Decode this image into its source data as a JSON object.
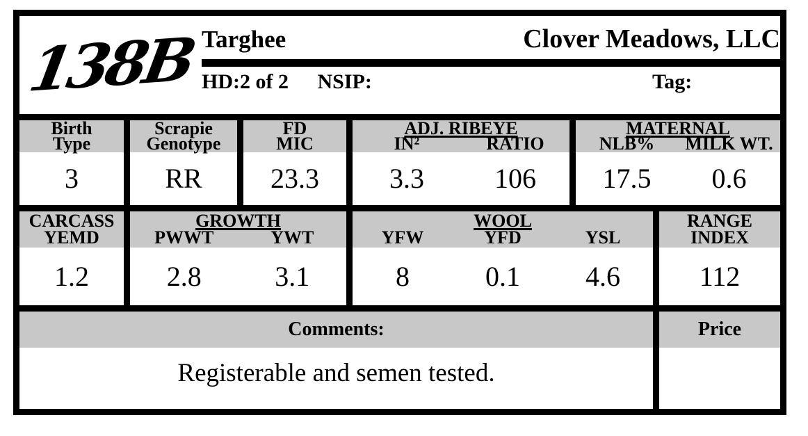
{
  "colors": {
    "header_band": "#c8c8c8",
    "border": "#000000",
    "text": "#000000",
    "background": "#ffffff"
  },
  "header": {
    "animal_id_script": "138B",
    "breed": "Targhee",
    "ranch_name": "Clover Meadows, LLC",
    "hd_text": "HD:2 of 2",
    "nsip_label": "NSIP:",
    "nsip_value": "",
    "tag_label": "Tag:",
    "tag_value": ""
  },
  "stats_row_1": {
    "birth_type": {
      "label_line1": "Birth",
      "label_line2": "Type",
      "value": "3"
    },
    "scrapie_genotype": {
      "label_line1": "Scrapie",
      "label_line2": "Genotype",
      "value": "RR"
    },
    "fd_mic": {
      "label_line1": "FD",
      "label_line2": "MIC",
      "value": "23.3"
    },
    "adj_ribeye": {
      "group_title": "ADJ. RIBEYE",
      "columns": [
        "IN²",
        "RATIO"
      ],
      "values": [
        "3.3",
        "106"
      ]
    },
    "maternal": {
      "group_title": "MATERNAL",
      "columns": [
        "NLB%",
        "MILK WT."
      ],
      "values": [
        "17.5",
        "0.6"
      ]
    }
  },
  "stats_row_2": {
    "carcass_yemd": {
      "label_line1": "CARCASS",
      "label_line2": "YEMD",
      "value": "1.2"
    },
    "growth": {
      "group_title": "GROWTH",
      "columns": [
        "PWWT",
        "YWT"
      ],
      "values": [
        "2.8",
        "3.1"
      ]
    },
    "wool": {
      "group_title": "WOOL",
      "columns": [
        "YFW",
        "YFD",
        "YSL"
      ],
      "values": [
        "8",
        "0.1",
        "4.6"
      ]
    },
    "range_index": {
      "label_line1": "RANGE",
      "label_line2": "INDEX",
      "value": "112"
    }
  },
  "comments": {
    "label": "Comments:",
    "value": "Registerable and semen tested."
  },
  "price": {
    "label": "Price",
    "value": ""
  }
}
